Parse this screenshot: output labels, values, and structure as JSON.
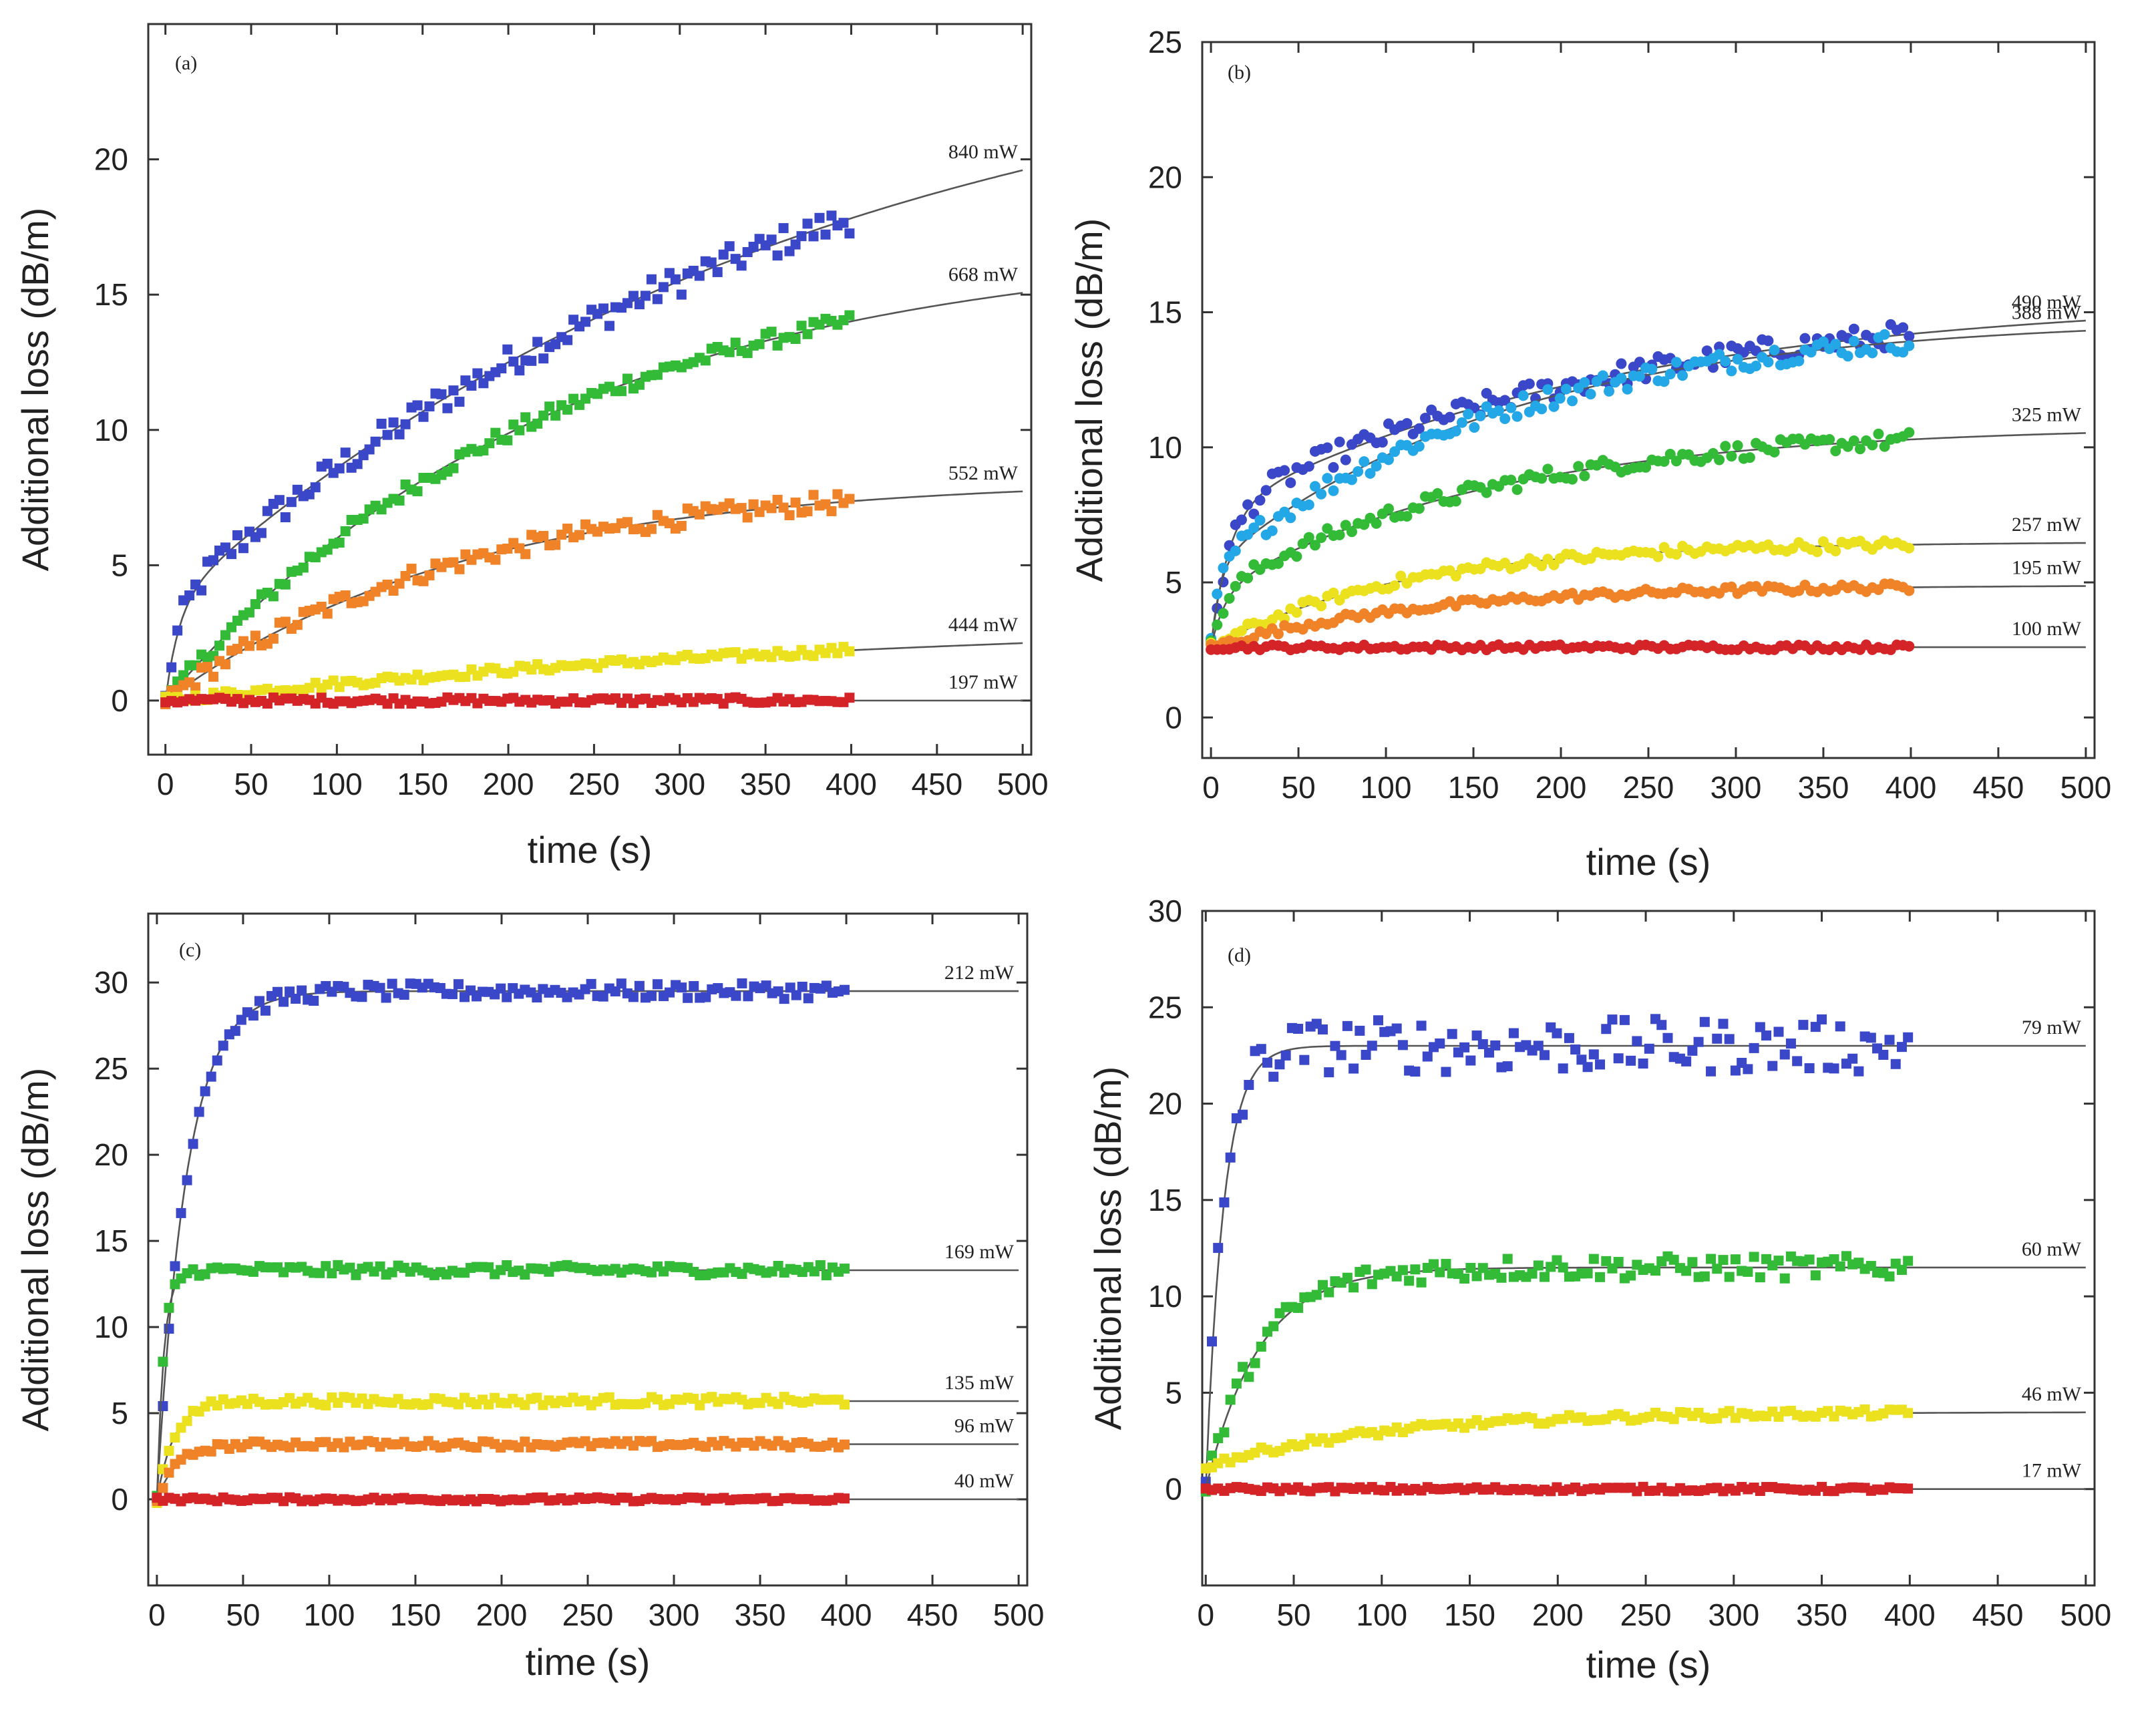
{
  "chart_data": [
    {
      "type": "scatter",
      "panel": "(a)",
      "xlabel": "time (s)",
      "ylabel": "Additional loss  (dB/m)",
      "xlim": [
        -10,
        505
      ],
      "ylim": [
        -2,
        25
      ],
      "xticks": [
        0,
        50,
        100,
        150,
        200,
        250,
        300,
        350,
        400,
        450,
        500
      ],
      "yticks": [
        0,
        5,
        10,
        15,
        20
      ],
      "marker": "square",
      "series": [
        {
          "name": "840 mW",
          "color": "#3a47c8",
          "model": "double",
          "params": [
            0,
            3.5,
            8,
            22,
            380
          ],
          "noise": 0.55
        },
        {
          "name": "668 mW",
          "color": "#33bb38",
          "model": "single",
          "params": [
            0,
            17,
            230
          ],
          "noise": 0.3
        },
        {
          "name": "552 mW",
          "color": "#f08228",
          "model": "single",
          "params": [
            0,
            8.2,
            175
          ],
          "noise": 0.35
        },
        {
          "name": "444 mW",
          "color": "#ece11e",
          "model": "single",
          "params": [
            0,
            3.2,
            460
          ],
          "noise": 0.15
        },
        {
          "name": "197 mW",
          "color": "#d42428",
          "model": "flat",
          "params": [
            0
          ],
          "noise": 0.12
        }
      ]
    },
    {
      "type": "scatter",
      "panel": "(b)",
      "xlabel": "time (s)",
      "ylabel": "Additional loss  (dB/m)",
      "xlim": [
        -5,
        505
      ],
      "ylim": [
        -1.5,
        25
      ],
      "xticks": [
        0,
        50,
        100,
        150,
        200,
        250,
        300,
        350,
        400,
        450,
        500
      ],
      "yticks": [
        0,
        5,
        10,
        15,
        20,
        25
      ],
      "marker": "circle",
      "series": [
        {
          "name": "490 mW",
          "color": "#3a47c8",
          "model": "double",
          "params": [
            2.6,
            5,
            10,
            8,
            230
          ],
          "noise": 0.45
        },
        {
          "name": "388 mW",
          "color": "#23a7e6",
          "model": "double",
          "params": [
            2.6,
            3,
            5,
            9.2,
            170
          ],
          "noise": 0.4
        },
        {
          "name": "325 mW",
          "color": "#33bb38",
          "model": "double",
          "params": [
            2.6,
            2,
            8,
            6.2,
            160
          ],
          "noise": 0.3
        },
        {
          "name": "257 mW",
          "color": "#ece11e",
          "model": "single",
          "params": [
            2.6,
            3.9,
            110
          ],
          "noise": 0.2
        },
        {
          "name": "195 mW",
          "color": "#f08228",
          "model": "single",
          "params": [
            2.6,
            2.3,
            120
          ],
          "noise": 0.15
        },
        {
          "name": "100 mW",
          "color": "#d42428",
          "model": "flat",
          "params": [
            2.6
          ],
          "noise": 0.1
        }
      ]
    },
    {
      "type": "scatter",
      "panel": "(c)",
      "xlabel": "time (s)",
      "ylabel": "Additional loss  (dB/m)",
      "xlim": [
        -5,
        505
      ],
      "ylim": [
        -5,
        34
      ],
      "xticks": [
        0,
        50,
        100,
        150,
        200,
        250,
        300,
        350,
        400,
        450,
        500
      ],
      "yticks": [
        0,
        5,
        10,
        15,
        20,
        25,
        30
      ],
      "marker": "square",
      "series": [
        {
          "name": "212 mW",
          "color": "#3a47c8",
          "model": "single",
          "params": [
            0,
            29.5,
            17
          ],
          "noise": 0.45
        },
        {
          "name": "169 mW",
          "color": "#33bb38",
          "model": "single",
          "params": [
            0,
            13.3,
            4
          ],
          "noise": 0.3
        },
        {
          "name": "135 mW",
          "color": "#ece11e",
          "model": "single",
          "params": [
            0,
            5.7,
            10
          ],
          "noise": 0.25
        },
        {
          "name": "96 mW",
          "color": "#f08228",
          "model": "single",
          "params": [
            0,
            3.2,
            12
          ],
          "noise": 0.2
        },
        {
          "name": "40 mW",
          "color": "#d42428",
          "model": "flat",
          "params": [
            0
          ],
          "noise": 0.12
        }
      ]
    },
    {
      "type": "scatter",
      "panel": "(d)",
      "xlabel": "time (s)",
      "ylabel": "Additional loss  (dB/m)",
      "xlim": [
        -2,
        505
      ],
      "ylim": [
        -5,
        30
      ],
      "xticks": [
        0,
        50,
        100,
        150,
        200,
        250,
        300,
        350,
        400,
        450,
        500
      ],
      "yticks": [
        0,
        5,
        10,
        15,
        20,
        25,
        30
      ],
      "marker": "square",
      "series": [
        {
          "name": "79 mW",
          "color": "#3a47c8",
          "model": "single",
          "params": [
            0,
            23,
            10
          ],
          "noise": 1.4
        },
        {
          "name": "60 mW",
          "color": "#33bb38",
          "model": "single",
          "params": [
            0,
            11.5,
            30
          ],
          "noise": 0.6
        },
        {
          "name": "46 mW",
          "color": "#ece11e",
          "model": "single",
          "params": [
            1.2,
            2.8,
            100
          ],
          "noise": 0.2
        },
        {
          "name": "17 mW",
          "color": "#d42428",
          "model": "flat",
          "params": [
            0
          ],
          "noise": 0.12
        }
      ]
    }
  ]
}
